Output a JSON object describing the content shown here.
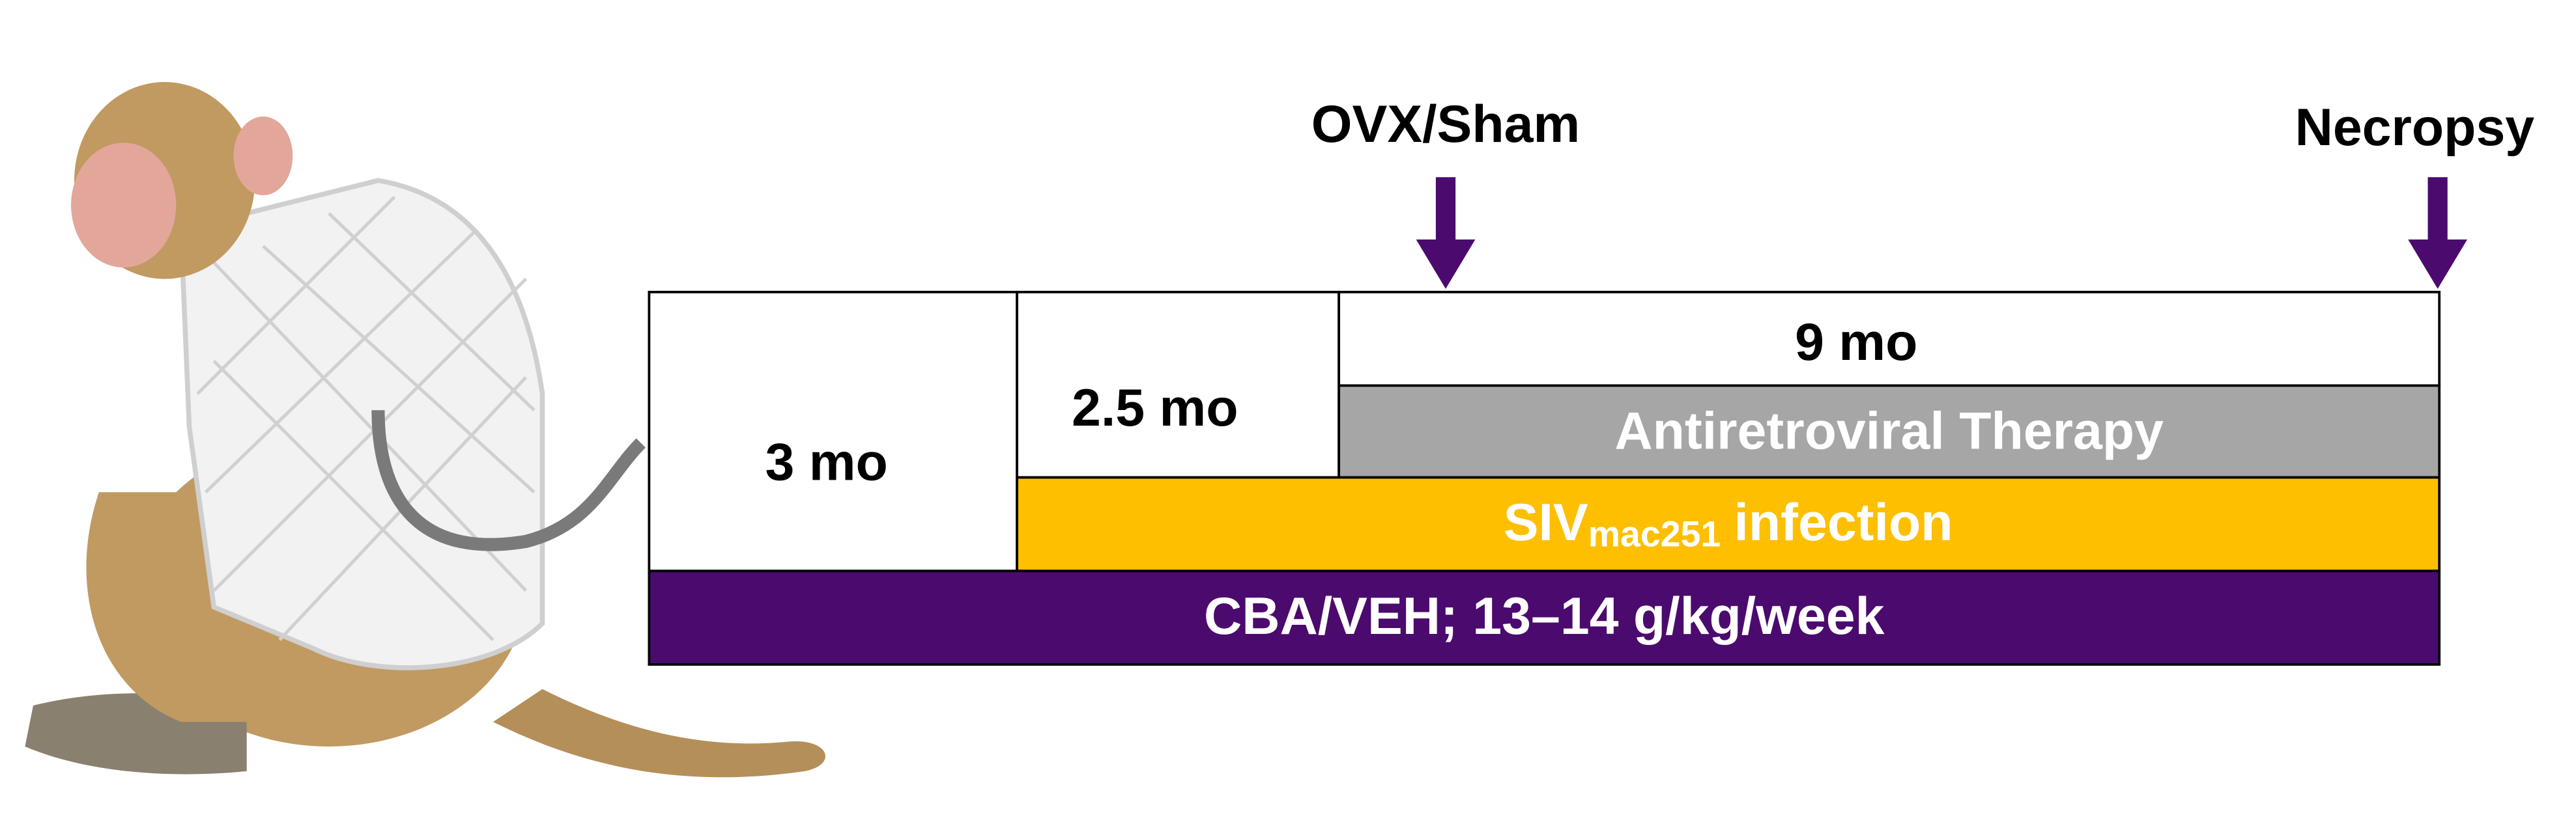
{
  "labels": {
    "ovx": "OVX/Sham",
    "necropsy": "Necropsy"
  },
  "phases": {
    "first": "3 mo",
    "second": "2.5 mo",
    "third": "9 mo"
  },
  "bars": {
    "art": "Antiretroviral Therapy",
    "siv": {
      "prefix": "SIV",
      "subscript": "mac251",
      "suffix": "infection"
    },
    "cba": "CBA/VEH; 13–14 g/kg/week"
  }
}
